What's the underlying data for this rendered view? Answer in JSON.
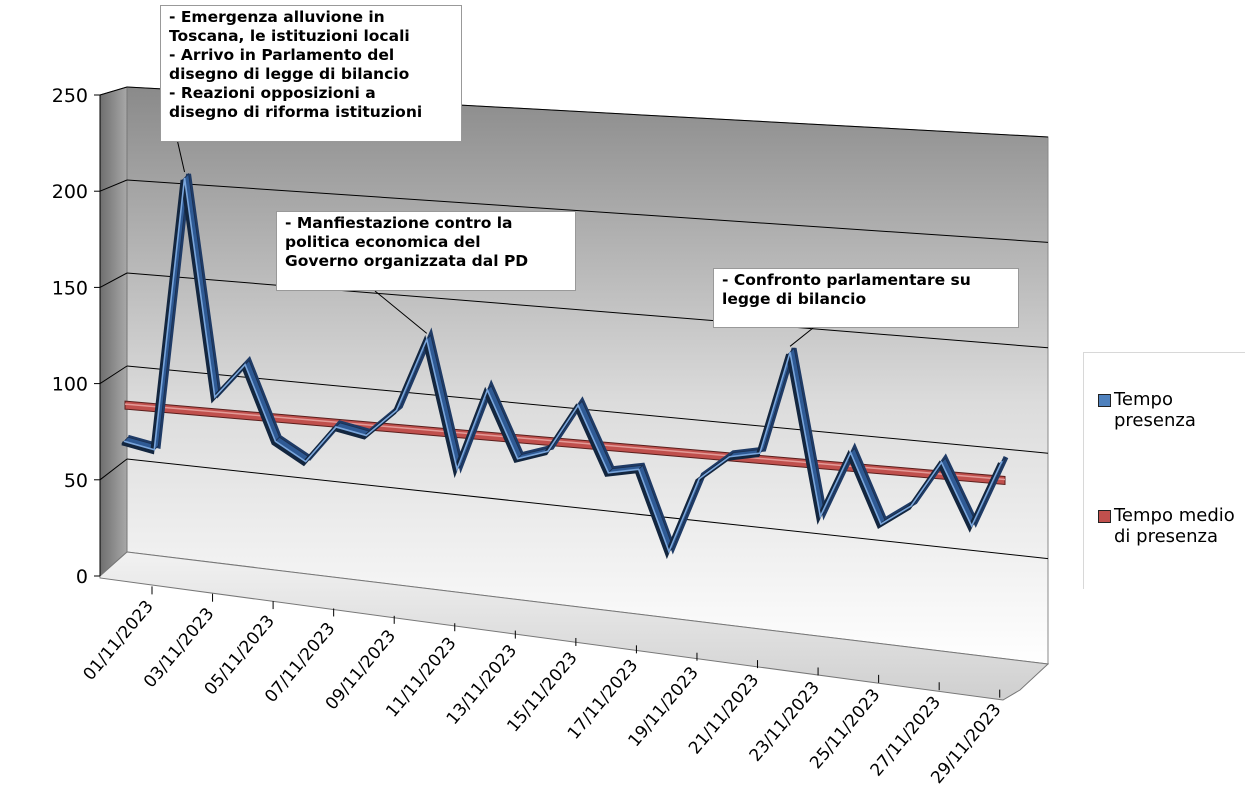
{
  "chart_data": {
    "type": "line",
    "title": "",
    "xlabel": "",
    "ylabel": "",
    "ylim": [
      0,
      250
    ],
    "y_ticks": [
      "0",
      "50",
      "100",
      "150",
      "200",
      "250"
    ],
    "x_tick_labels": [
      "01/11/2023",
      "03/11/2023",
      "05/11/2023",
      "07/11/2023",
      "09/11/2023",
      "11/11/2023",
      "13/11/2023",
      "15/11/2023",
      "17/11/2023",
      "19/11/2023",
      "21/11/2023",
      "23/11/2023",
      "25/11/2023",
      "27/11/2023",
      "29/11/2023"
    ],
    "x": [
      "01/11/2023",
      "02/11/2023",
      "03/11/2023",
      "04/11/2023",
      "05/11/2023",
      "06/11/2023",
      "07/11/2023",
      "08/11/2023",
      "09/11/2023",
      "10/11/2023",
      "11/11/2023",
      "12/11/2023",
      "13/11/2023",
      "14/11/2023",
      "15/11/2023",
      "16/11/2023",
      "17/11/2023",
      "18/11/2023",
      "19/11/2023",
      "20/11/2023",
      "21/11/2023",
      "22/11/2023",
      "23/11/2023",
      "24/11/2023",
      "25/11/2023",
      "26/11/2023",
      "27/11/2023",
      "28/11/2023",
      "29/11/2023",
      "30/11/2023"
    ],
    "series": [
      {
        "name": "Tempo presenza",
        "color": "#5b86c6",
        "values": [
          66,
          63,
          205,
          93,
          111,
          73,
          64,
          83,
          80,
          94,
          131,
          67,
          108,
          75,
          80,
          104,
          72,
          75,
          36,
          73,
          85,
          88,
          138,
          60,
          92,
          59,
          69,
          91,
          62,
          94
        ]
      },
      {
        "name": "Tempo medio di presenza",
        "color": "#c0504d",
        "values": [
          86,
          86,
          86,
          86,
          86,
          86,
          86,
          86,
          86,
          86,
          86,
          86,
          86,
          86,
          86,
          86,
          86,
          86,
          86,
          86,
          86,
          86,
          86,
          86,
          86,
          86,
          86,
          86,
          86,
          86
        ]
      }
    ],
    "annotations": [
      {
        "text": "- Emergenza alluvione in\nToscana, le istituzioni locali\n- Arrivo in Parlamento del\ndisegno di legge di bilancio\n- Reazioni opposizioni a\ndisegno di riforma istituzioni",
        "point_index": 2
      },
      {
        "text": "- Manfiestazione contro la\npolitica economica del\nGoverno organizzata dal PD",
        "point_index": 10
      },
      {
        "text": "- Confronto parlamentare su\nlegge di bilancio",
        "point_index": 22
      }
    ],
    "legend": {
      "position": "right",
      "items": [
        {
          "label": "Tempo\npresenza",
          "color": "#4f81bd"
        },
        {
          "label": "Tempo medio\ndi presenza",
          "color": "#c0504d"
        }
      ]
    },
    "grid": true
  }
}
